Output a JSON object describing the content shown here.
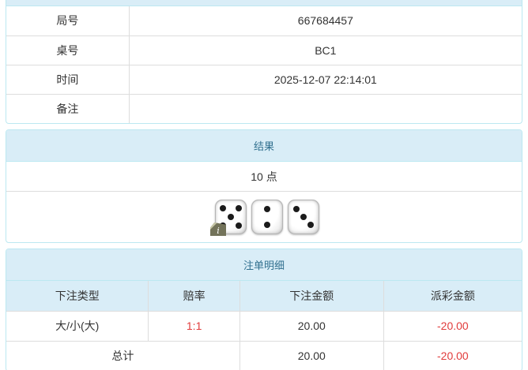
{
  "info_table": {
    "rows": [
      {
        "label": "局号",
        "value": "667684457"
      },
      {
        "label": "桌号",
        "value": "BC1"
      },
      {
        "label": "时间",
        "value": "2025-12-07 22:14:01"
      },
      {
        "label": "备注",
        "value": ""
      }
    ]
  },
  "result_panel": {
    "title": "结果",
    "points": "10 点",
    "dice": [
      5,
      2,
      3
    ],
    "badge_glyph": "i"
  },
  "bets_panel": {
    "title": "注单明细",
    "columns": [
      "下注类型",
      "赔率",
      "下注金额",
      "派彩金额"
    ],
    "rows": [
      {
        "bet_type": "大/小(大)",
        "odds": "1:1",
        "bet_amount": "20.00",
        "payout": "-20.00"
      }
    ],
    "total": {
      "label": "总计",
      "bet_amount": "20.00",
      "payout": "-20.00"
    }
  },
  "colors": {
    "panel_border": "#bce8f1",
    "heading_bg": "#d9edf7",
    "heading_text": "#31708f",
    "cell_border": "#dddddd",
    "body_text": "#333333",
    "negative_text": "#e13c3c"
  }
}
